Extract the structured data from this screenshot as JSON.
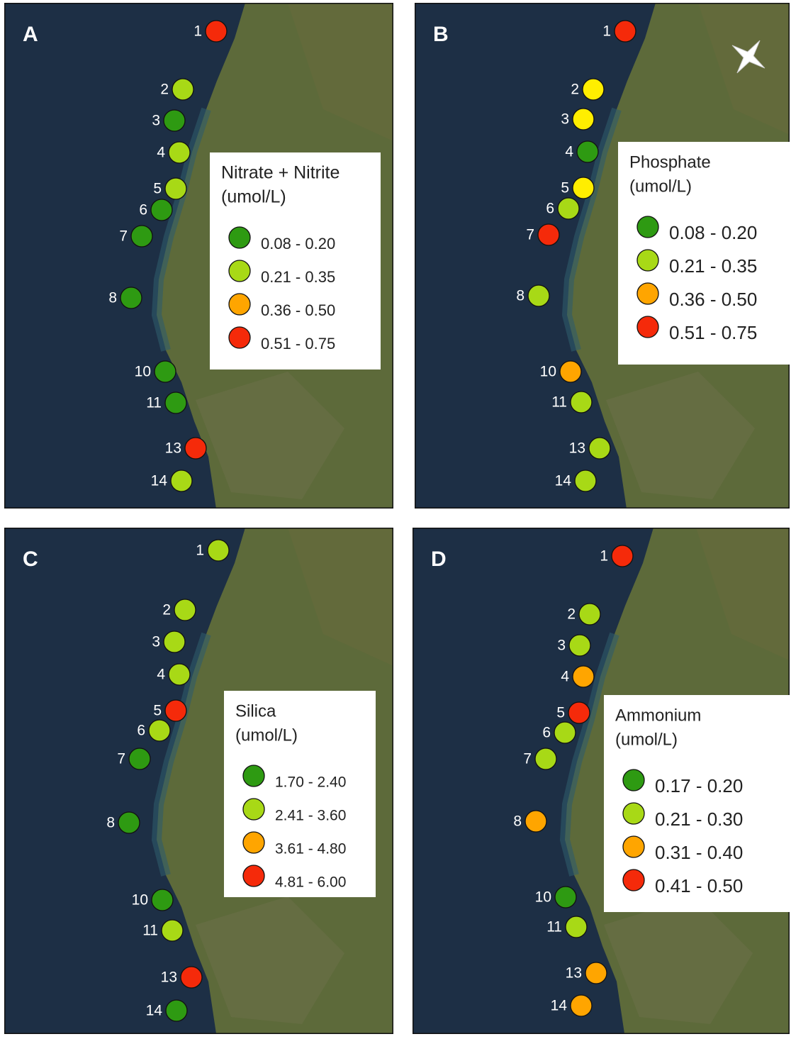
{
  "panels": [
    {
      "letter": "A",
      "legend": {
        "title": [
          "Nitrate + Nitrite",
          "(umol/L)"
        ],
        "items": [
          {
            "label": "0.08 - 0.20",
            "color": "#2e9a12"
          },
          {
            "label": "0.21 - 0.35",
            "color": "#a8d916"
          },
          {
            "label": "0.36 - 0.50",
            "color": "#ffa500"
          },
          {
            "label": "0.51 - 0.75",
            "color": "#f52a0a"
          }
        ]
      },
      "stations": [
        {
          "label": "1",
          "color": "#f52a0a"
        },
        {
          "label": "2",
          "color": "#a8d916"
        },
        {
          "label": "3",
          "color": "#2e9a12"
        },
        {
          "label": "4",
          "color": "#a8d916"
        },
        {
          "label": "5",
          "color": "#a8d916"
        },
        {
          "label": "6",
          "color": "#2e9a12"
        },
        {
          "label": "7",
          "color": "#2e9a12"
        },
        {
          "label": "8",
          "color": "#2e9a12"
        },
        {
          "label": "10",
          "color": "#2e9a12"
        },
        {
          "label": "11",
          "color": "#2e9a12"
        },
        {
          "label": "13",
          "color": "#f52a0a"
        },
        {
          "label": "14",
          "color": "#a8d916"
        }
      ]
    },
    {
      "letter": "B",
      "legend": {
        "title": [
          "Phosphate",
          "(umol/L)"
        ],
        "items": [
          {
            "label": "0.08 - 0.20",
            "color": "#2e9a12"
          },
          {
            "label": "0.21 - 0.35",
            "color": "#a8d916"
          },
          {
            "label": "0.36 - 0.50",
            "color": "#ffa500"
          },
          {
            "label": "0.51 - 0.75",
            "color": "#f52a0a"
          }
        ]
      },
      "stations": [
        {
          "label": "1",
          "color": "#f52a0a"
        },
        {
          "label": "2",
          "color": "#ffee00"
        },
        {
          "label": "3",
          "color": "#ffee00"
        },
        {
          "label": "4",
          "color": "#2e9a12"
        },
        {
          "label": "5",
          "color": "#ffee00"
        },
        {
          "label": "6",
          "color": "#a8d916"
        },
        {
          "label": "7",
          "color": "#f52a0a"
        },
        {
          "label": "8",
          "color": "#a8d916"
        },
        {
          "label": "10",
          "color": "#ffa500"
        },
        {
          "label": "11",
          "color": "#a8d916"
        },
        {
          "label": "13",
          "color": "#a8d916"
        },
        {
          "label": "14",
          "color": "#a8d916"
        }
      ]
    },
    {
      "letter": "C",
      "legend": {
        "title": [
          "Silica",
          "(umol/L)"
        ],
        "items": [
          {
            "label": "1.70 - 2.40",
            "color": "#2e9a12"
          },
          {
            "label": "2.41 - 3.60",
            "color": "#a8d916"
          },
          {
            "label": "3.61 - 4.80",
            "color": "#ffa500"
          },
          {
            "label": "4.81 - 6.00",
            "color": "#f52a0a"
          }
        ]
      },
      "stations": [
        {
          "label": "1",
          "color": "#a8d916"
        },
        {
          "label": "2",
          "color": "#a8d916"
        },
        {
          "label": "3",
          "color": "#a8d916"
        },
        {
          "label": "4",
          "color": "#a8d916"
        },
        {
          "label": "5",
          "color": "#f52a0a"
        },
        {
          "label": "6",
          "color": "#a8d916"
        },
        {
          "label": "7",
          "color": "#2e9a12"
        },
        {
          "label": "8",
          "color": "#2e9a12"
        },
        {
          "label": "10",
          "color": "#2e9a12"
        },
        {
          "label": "11",
          "color": "#a8d916"
        },
        {
          "label": "13",
          "color": "#f52a0a"
        },
        {
          "label": "14",
          "color": "#2e9a12"
        }
      ]
    },
    {
      "letter": "D",
      "legend": {
        "title": [
          "Ammonium",
          "(umol/L)"
        ],
        "items": [
          {
            "label": "0.17 - 0.20",
            "color": "#2e9a12"
          },
          {
            "label": "0.21 - 0.30",
            "color": "#a8d916"
          },
          {
            "label": "0.31 - 0.40",
            "color": "#ffa500"
          },
          {
            "label": "0.41 - 0.50",
            "color": "#f52a0a"
          }
        ]
      },
      "stations": [
        {
          "label": "1",
          "color": "#f52a0a"
        },
        {
          "label": "2",
          "color": "#a8d916"
        },
        {
          "label": "3",
          "color": "#a8d916"
        },
        {
          "label": "4",
          "color": "#ffa500"
        },
        {
          "label": "5",
          "color": "#f52a0a"
        },
        {
          "label": "6",
          "color": "#a8d916"
        },
        {
          "label": "7",
          "color": "#a8d916"
        },
        {
          "label": "8",
          "color": "#ffa500"
        },
        {
          "label": "10",
          "color": "#2e9a12"
        },
        {
          "label": "11",
          "color": "#a8d916"
        },
        {
          "label": "13",
          "color": "#ffa500"
        },
        {
          "label": "14",
          "color": "#ffa500"
        }
      ]
    }
  ]
}
